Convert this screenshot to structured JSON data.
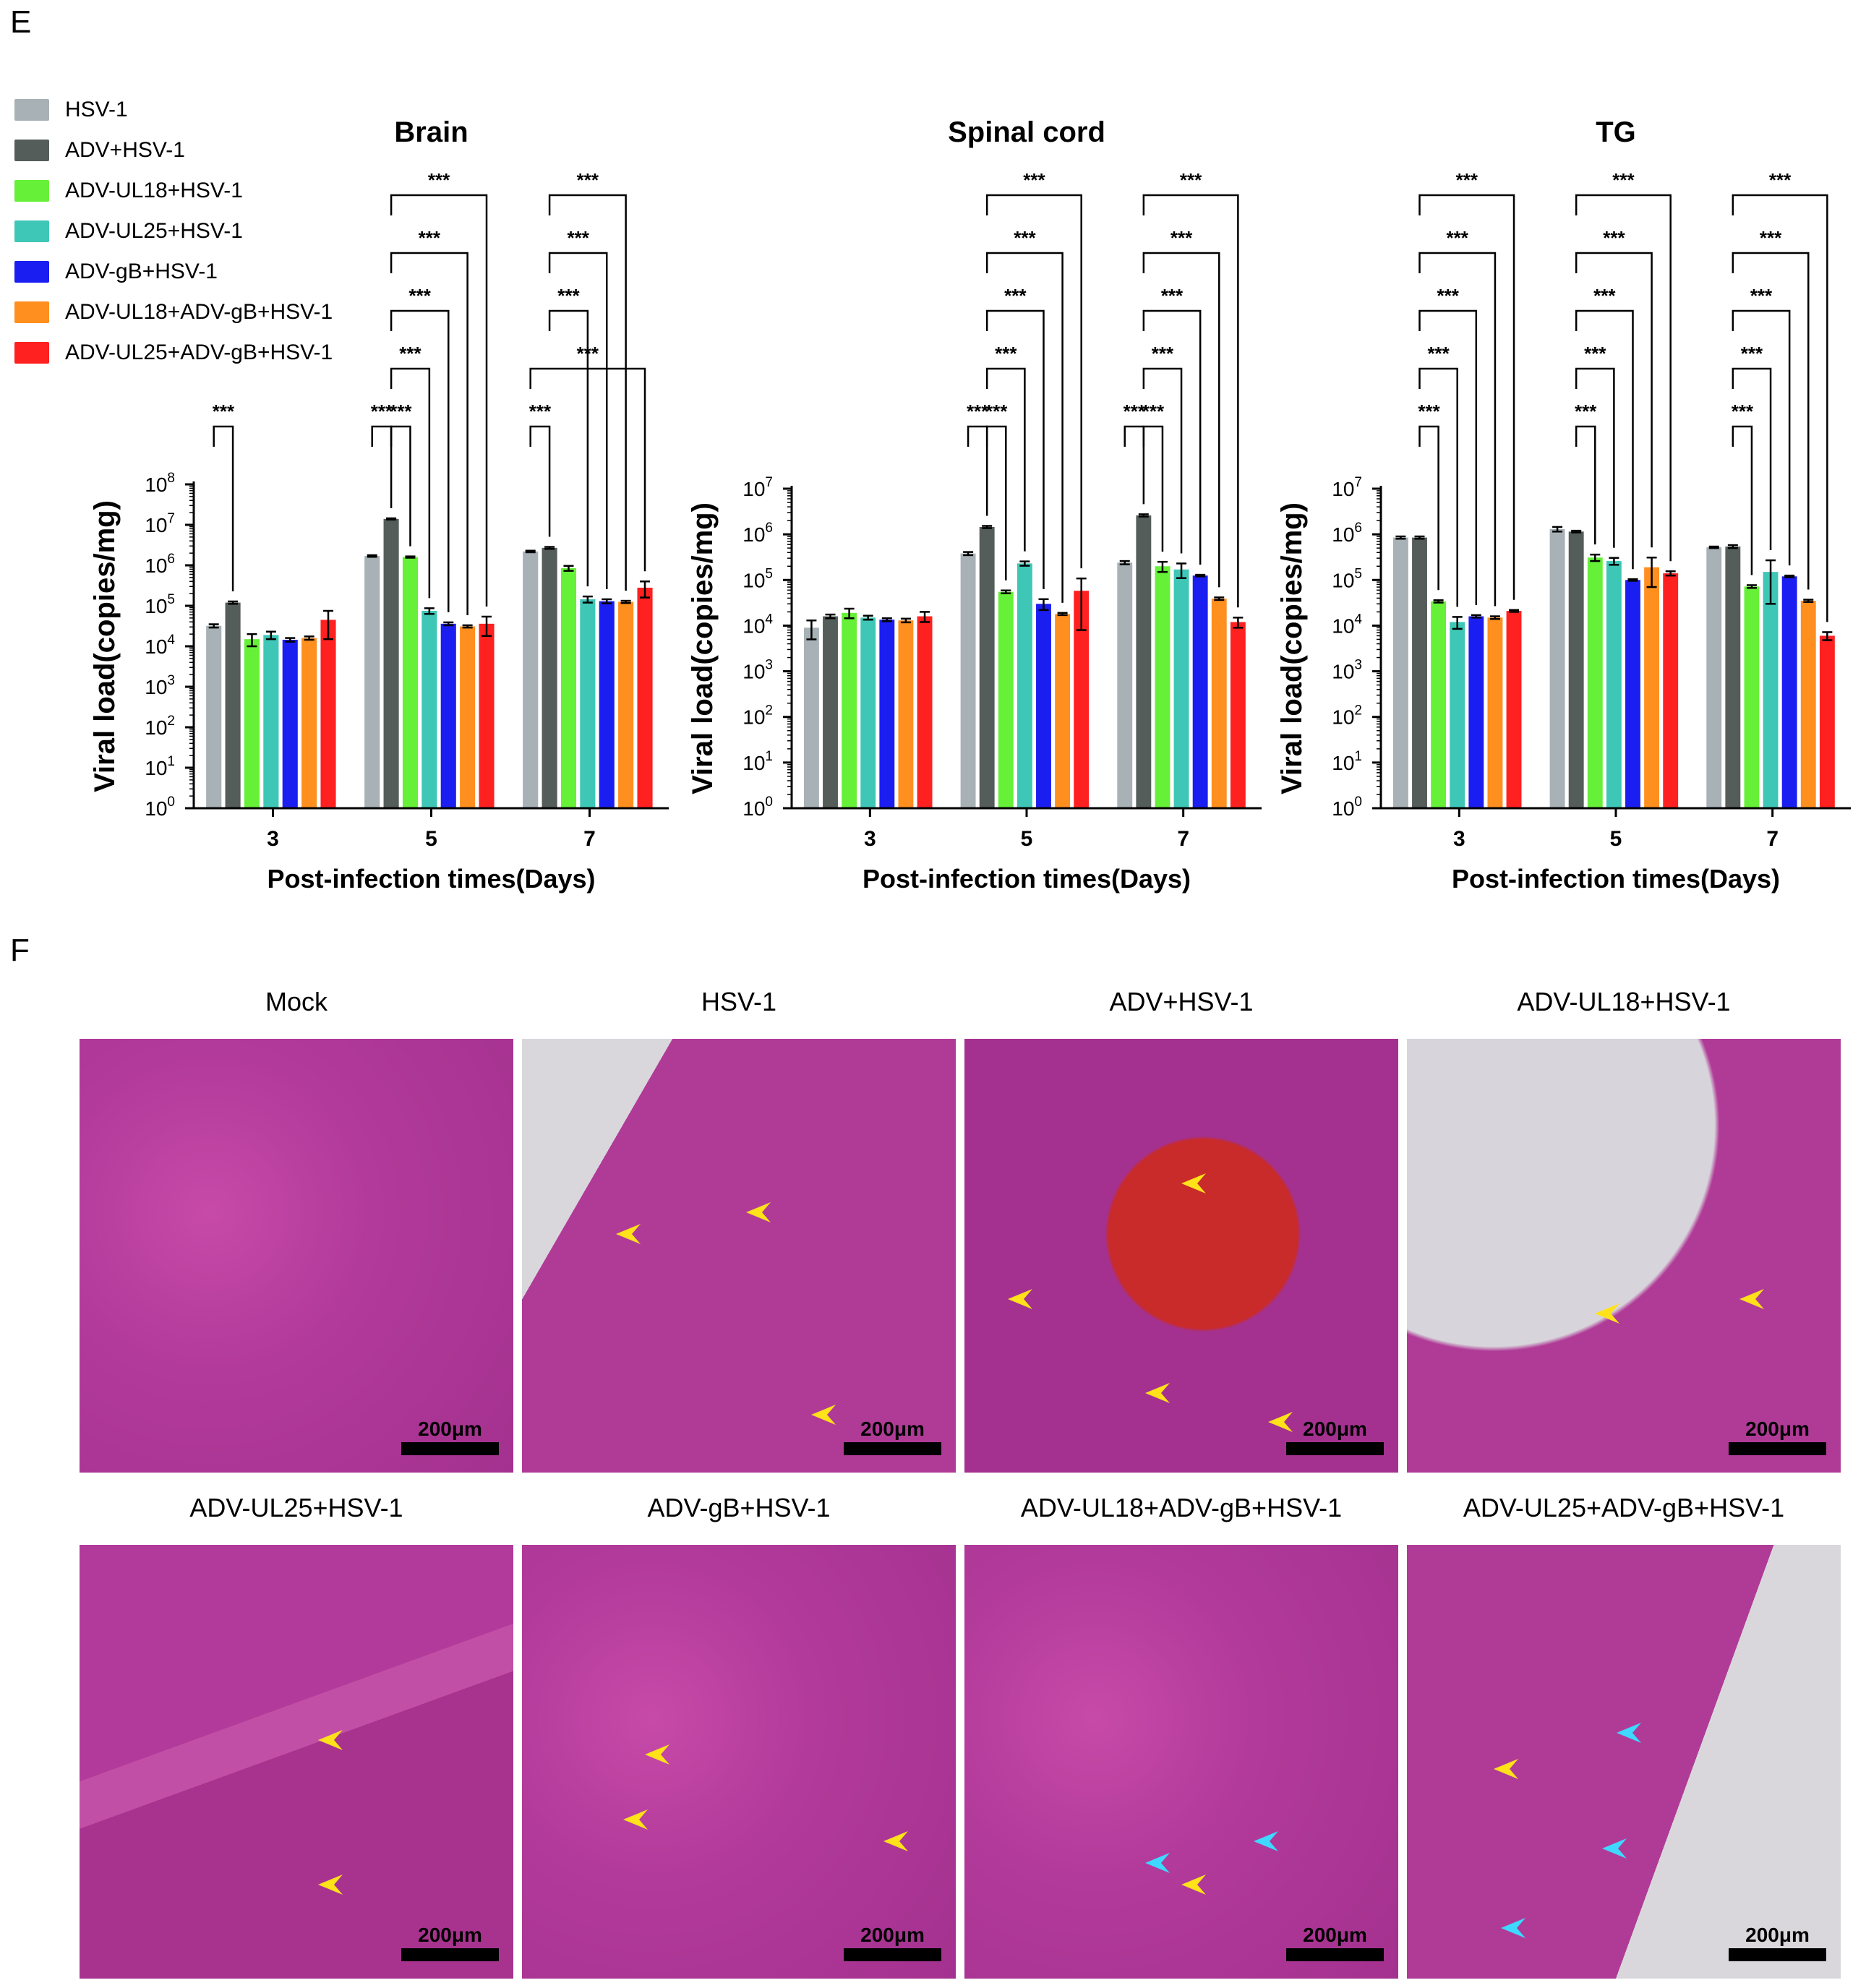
{
  "panel_labels": {
    "charts": "E",
    "histology": "F"
  },
  "colors": {
    "HSV-1": "#a7b1b6",
    "ADV+HSV-1": "#545d5a",
    "ADV-UL18+HSV-1": "#66f038",
    "ADV-UL25+HSV-1": "#3ec7b6",
    "ADV-gB+HSV-1": "#1a1ef0",
    "ADV-UL18+ADV-gB+HSV-1": "#ff8f1f",
    "ADV-UL25+ADV-gB+HSV-1": "#ff2020"
  },
  "legend": [
    "HSV-1",
    "ADV+HSV-1",
    "ADV-UL18+HSV-1",
    "ADV-UL25+HSV-1",
    "ADV-gB+HSV-1",
    "ADV-UL18+ADV-gB+HSV-1",
    "ADV-UL25+ADV-gB+HSV-1"
  ],
  "chart_data": [
    {
      "type": "bar",
      "title": "Brain",
      "xlabel": "Post-infection times(Days)",
      "ylabel": "Viral load(copies/mg)",
      "scale": "log",
      "ytick_exponents": [
        0,
        1,
        2,
        3,
        4,
        5,
        6,
        7,
        8
      ],
      "categories": [
        "3",
        "5",
        "7"
      ],
      "significance_label": "***",
      "series": [
        {
          "name": "HSV-1",
          "values": [
            32000,
            1700000,
            2200000
          ],
          "errors": [
            3000,
            80000,
            100000
          ]
        },
        {
          "name": "ADV+HSV-1",
          "values": [
            120000,
            14000000,
            2700000
          ],
          "errors": [
            8000,
            500000,
            150000
          ]
        },
        {
          "name": "ADV-UL18+HSV-1",
          "values": [
            15000,
            1600000,
            850000
          ],
          "errors": [
            5000,
            60000,
            120000
          ]
        },
        {
          "name": "ADV-UL25+HSV-1",
          "values": [
            19000,
            75000,
            145000
          ],
          "errors": [
            4000,
            12000,
            25000
          ]
        },
        {
          "name": "ADV-gB+HSV-1",
          "values": [
            14500,
            36000,
            130000
          ],
          "errors": [
            1500,
            3000,
            15000
          ]
        },
        {
          "name": "ADV-UL18+ADV-gB+HSV-1",
          "values": [
            16000,
            31000,
            125000
          ],
          "errors": [
            1500,
            2000,
            8000
          ]
        },
        {
          "name": "ADV-UL25+ADV-gB+HSV-1",
          "values": [
            45000,
            36000,
            280000
          ],
          "errors": [
            30000,
            18000,
            120000
          ]
        }
      ]
    },
    {
      "type": "bar",
      "title": "Spinal cord",
      "xlabel": "Post-infection times(Days)",
      "ylabel": "Viral load(copies/mg)",
      "scale": "log",
      "ytick_exponents": [
        0,
        1,
        2,
        3,
        4,
        5,
        6,
        7
      ],
      "categories": [
        "3",
        "5",
        "7"
      ],
      "significance_label": "***",
      "series": [
        {
          "name": "HSV-1",
          "values": [
            9000,
            380000,
            240000
          ],
          "errors": [
            4000,
            30000,
            20000
          ]
        },
        {
          "name": "ADV+HSV-1",
          "values": [
            16000,
            1450000,
            2600000
          ],
          "errors": [
            1500,
            80000,
            150000
          ]
        },
        {
          "name": "ADV-UL18+HSV-1",
          "values": [
            19000,
            55000,
            200000
          ],
          "errors": [
            4500,
            4000,
            50000
          ]
        },
        {
          "name": "ADV-UL25+HSV-1",
          "values": [
            15000,
            230000,
            170000
          ],
          "errors": [
            1500,
            25000,
            60000
          ]
        },
        {
          "name": "ADV-gB+HSV-1",
          "values": [
            13500,
            30000,
            125000
          ],
          "errors": [
            1000,
            8000,
            5000
          ]
        },
        {
          "name": "ADV-UL18+ADV-gB+HSV-1",
          "values": [
            13000,
            18000,
            39000
          ],
          "errors": [
            1200,
            1000,
            2500
          ]
        },
        {
          "name": "ADV-UL25+ADV-gB+HSV-1",
          "values": [
            16000,
            58000,
            12000
          ],
          "errors": [
            4000,
            50000,
            3000
          ]
        }
      ]
    },
    {
      "type": "bar",
      "title": "TG",
      "xlabel": "Post-infection times(Days)",
      "ylabel": "Viral load(copies/mg)",
      "scale": "log",
      "ytick_exponents": [
        0,
        1,
        2,
        3,
        4,
        5,
        6,
        7
      ],
      "categories": [
        "3",
        "5",
        "7"
      ],
      "significance_label": "***",
      "series": [
        {
          "name": "HSV-1",
          "values": [
            850000,
            1300000,
            520000
          ],
          "errors": [
            50000,
            150000,
            20000
          ]
        },
        {
          "name": "ADV+HSV-1",
          "values": [
            850000,
            1150000,
            540000
          ],
          "errors": [
            50000,
            50000,
            40000
          ]
        },
        {
          "name": "ADV-UL18+HSV-1",
          "values": [
            34000,
            310000,
            72000
          ],
          "errors": [
            2000,
            50000,
            5000
          ]
        },
        {
          "name": "ADV-UL25+HSV-1",
          "values": [
            12000,
            260000,
            150000
          ],
          "errors": [
            3500,
            45000,
            120000
          ]
        },
        {
          "name": "ADV-gB+HSV-1",
          "values": [
            16000,
            100000,
            120000
          ],
          "errors": [
            1000,
            4000,
            5000
          ]
        },
        {
          "name": "ADV-UL18+ADV-gB+HSV-1",
          "values": [
            15000,
            190000,
            35000
          ],
          "errors": [
            1000,
            120000,
            2000
          ]
        },
        {
          "name": "ADV-UL25+ADV-gB+HSV-1",
          "values": [
            21000,
            140000,
            6000
          ],
          "errors": [
            1000,
            15000,
            1200
          ]
        }
      ]
    }
  ],
  "histology": {
    "scalebar": "200μm",
    "panels": [
      {
        "title": "Mock"
      },
      {
        "title": "HSV-1"
      },
      {
        "title": "ADV+HSV-1"
      },
      {
        "title": "ADV-UL18+HSV-1"
      },
      {
        "title": "ADV-UL25+HSV-1"
      },
      {
        "title": "ADV-gB+HSV-1"
      },
      {
        "title": "ADV-UL18+ADV-gB+HSV-1"
      },
      {
        "title": "ADV-UL25+ADV-gB+HSV-1"
      }
    ],
    "arrow_colors": {
      "yellow": "#ffe21a",
      "cyan": "#3fd8ff"
    }
  }
}
